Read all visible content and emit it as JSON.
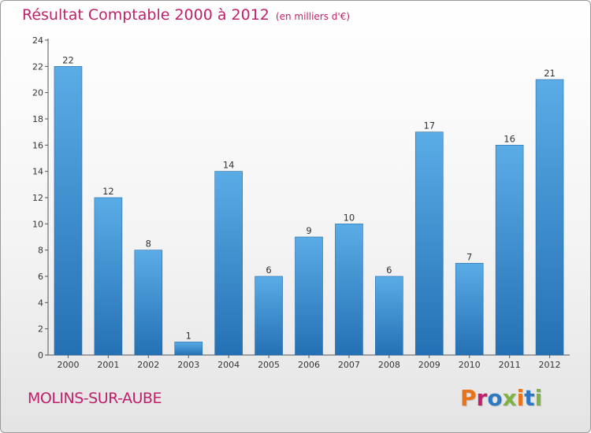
{
  "header": {
    "title": "Résultat Comptable 2000 à 2012",
    "subtitle": "(en milliers d'€)"
  },
  "footer": {
    "commune": "MOLINS-SUR-AUBE",
    "logo_text": "Proxiti",
    "logo_colors": [
      "#e8731a",
      "#c0206a",
      "#2e78c2",
      "#7cb342",
      "#e8731a",
      "#2e78c2",
      "#7cb342"
    ]
  },
  "colors": {
    "bar_light": "#5aace6",
    "bar_dark": "#2470b4",
    "title": "#c0206a"
  },
  "chart_data": {
    "type": "bar",
    "categories": [
      "2000",
      "2001",
      "2002",
      "2003",
      "2004",
      "2005",
      "2006",
      "2007",
      "2008",
      "2009",
      "2010",
      "2011",
      "2012"
    ],
    "values": [
      22,
      12,
      8,
      1,
      14,
      6,
      9,
      10,
      6,
      17,
      7,
      16,
      21
    ],
    "title": "Résultat Comptable 2000 à 2012",
    "ylim": [
      0,
      24
    ],
    "yticks": [
      0,
      2,
      4,
      6,
      8,
      10,
      12,
      14,
      16,
      18,
      20,
      22,
      24
    ],
    "grid": false,
    "data_labels": true
  }
}
